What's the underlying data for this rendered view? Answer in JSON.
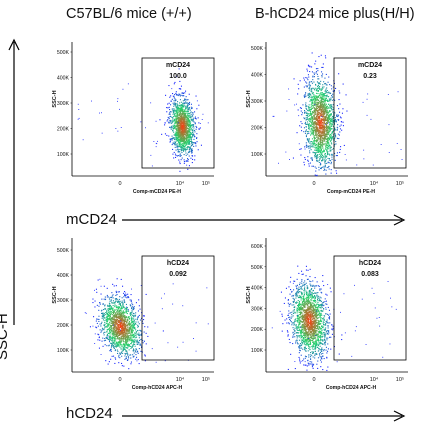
{
  "column_titles": [
    "C57BL/6 mice (+/+)",
    "B-hCD24 mice plus(H/H)"
  ],
  "row_axis_labels": [
    "mCD24",
    "hCD24"
  ],
  "y_axis_outer_label": "SSC-H",
  "colors": {
    "density_low": "#1f2cff",
    "density_mid": "#22d36a",
    "density_high": "#ff3b10",
    "gate": "#000000"
  },
  "chart_data": [
    {
      "type": "scatter",
      "panel": "C57BL/6 mice (+/+) mCD24",
      "xlabel": "Comp-mCD24 PE-H",
      "ylabel": "SSC-H",
      "x_ticks": [
        "0",
        "10⁴",
        "10⁵"
      ],
      "y_ticks": [
        "500K",
        "400K",
        "300K",
        "200K",
        "100K"
      ],
      "gate": {
        "name": "mCD24",
        "percent": "100.0"
      },
      "population": {
        "center_x": "10^4.4",
        "center_y": 180000
      }
    },
    {
      "type": "scatter",
      "panel": "B-hCD24 mice plus(H/H) mCD24",
      "xlabel": "Comp-mCD24 PE-H",
      "ylabel": "SSC-H",
      "x_ticks": [
        "0",
        "10⁴",
        "10⁵"
      ],
      "y_ticks": [
        "500K",
        "400K",
        "300K",
        "200K",
        "100K"
      ],
      "gate": {
        "name": "mCD24",
        "percent": "0.23"
      },
      "population": {
        "center_x": "~0",
        "center_y": 190000
      }
    },
    {
      "type": "scatter",
      "panel": "C57BL/6 mice (+/+) hCD24",
      "xlabel": "Comp-hCD24 APC-H",
      "ylabel": "SSC-H",
      "x_ticks": [
        "0",
        "10⁴",
        "10⁵"
      ],
      "y_ticks": [
        "500K",
        "400K",
        "300K",
        "200K",
        "100K"
      ],
      "gate": {
        "name": "hCD24",
        "percent": "0.092"
      },
      "population": {
        "center_x": "~0",
        "center_y": 180000
      }
    },
    {
      "type": "scatter",
      "panel": "B-hCD24 mice plus(H/H) hCD24",
      "xlabel": "Comp-hCD24 APC-H",
      "ylabel": "SSC-H",
      "x_ticks": [
        "0",
        "10⁴",
        "10⁵"
      ],
      "y_ticks": [
        "600K",
        "500K",
        "400K",
        "300K",
        "200K",
        "100K"
      ],
      "gate": {
        "name": "hCD24",
        "percent": "0.083"
      },
      "population": {
        "center_x": "~0",
        "center_y": 200000
      }
    }
  ]
}
